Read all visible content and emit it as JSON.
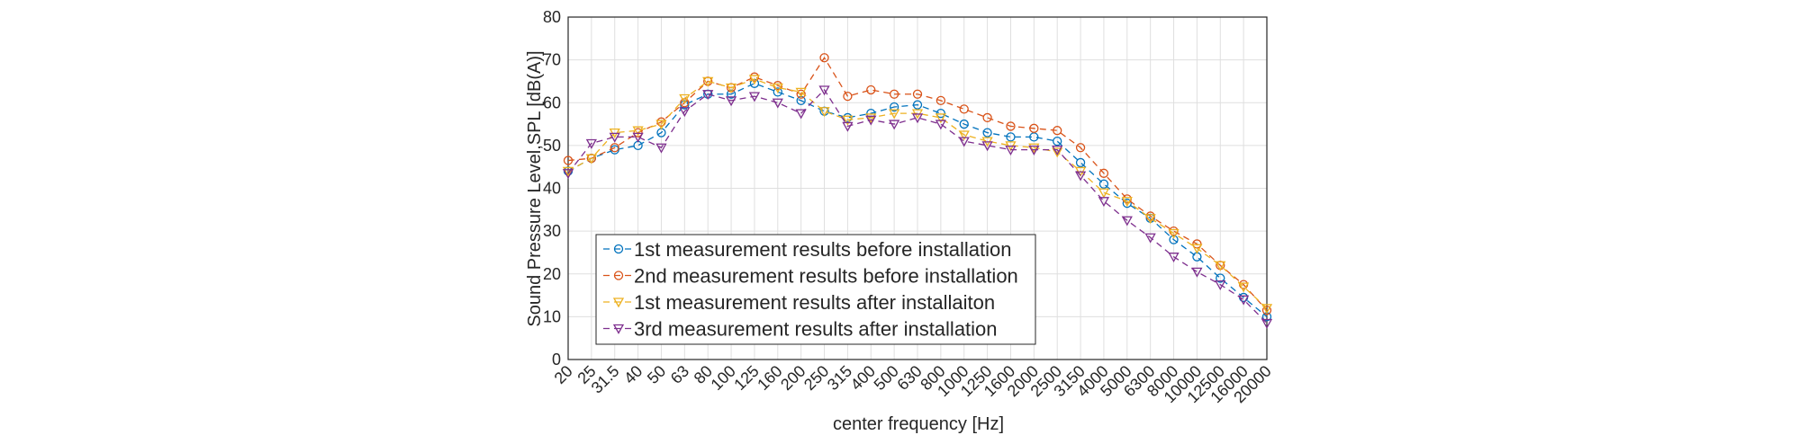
{
  "chart_data": {
    "type": "line",
    "xlabel": "center frequency [Hz]",
    "ylabel": "Sound Pressure Level,SPL [dB(A)]",
    "categories": [
      "20",
      "25",
      "31.5",
      "40",
      "50",
      "63",
      "80",
      "100",
      "125",
      "160",
      "200",
      "250",
      "315",
      "400",
      "500",
      "630",
      "800",
      "1000",
      "1250",
      "1600",
      "2000",
      "2500",
      "3150",
      "4000",
      "5000",
      "6300",
      "8000",
      "10000",
      "12500",
      "16000",
      "20000"
    ],
    "series": [
      {
        "name": "1st measurement results before installation",
        "color": "#0072BD",
        "marker": "o",
        "values": [
          44,
          47,
          49,
          50,
          53,
          59.5,
          62,
          62,
          64.5,
          62.5,
          60.5,
          58,
          56.5,
          57.5,
          59,
          59.5,
          57.5,
          55,
          53,
          52,
          52,
          51,
          46,
          41,
          36.5,
          33,
          28,
          24,
          19,
          14.5,
          10
        ]
      },
      {
        "name": "2nd measurement results before installation",
        "color": "#D95319",
        "marker": "o",
        "values": [
          46.5,
          47,
          49.5,
          53,
          55.5,
          60,
          65,
          63.5,
          66,
          64,
          62,
          70.5,
          61.5,
          63,
          62,
          62,
          60.5,
          58.5,
          56.5,
          54.5,
          54,
          53.5,
          49.5,
          43.5,
          37.5,
          33.5,
          30,
          27,
          22,
          17.5,
          11.5
        ]
      },
      {
        "name": "1st measurement results after installaiton",
        "color": "#EDB120",
        "marker": "v",
        "values": [
          44,
          47,
          53,
          53.5,
          55,
          61,
          65,
          63.5,
          65.5,
          63.5,
          62.5,
          58,
          56,
          56.5,
          57.5,
          57.5,
          56.5,
          52.5,
          51,
          50,
          49.5,
          48.5,
          44,
          39,
          37,
          33,
          29.5,
          26,
          22,
          17,
          12
        ]
      },
      {
        "name": "3rd measurement results after installation",
        "color": "#7E2F8E",
        "marker": "v",
        "values": [
          43.5,
          50.5,
          52,
          52,
          49.5,
          58,
          62,
          60.5,
          61.5,
          60,
          57.5,
          63,
          54.5,
          56,
          55,
          56.5,
          55,
          51,
          50,
          49,
          49,
          49,
          43,
          37,
          32.5,
          28.5,
          24,
          20.5,
          17.5,
          14,
          8.5
        ]
      }
    ],
    "ylim": [
      0,
      80
    ],
    "yticks": [
      0,
      10,
      20,
      30,
      40,
      50,
      60,
      70,
      80
    ],
    "grid": true,
    "legend": "lower left"
  }
}
